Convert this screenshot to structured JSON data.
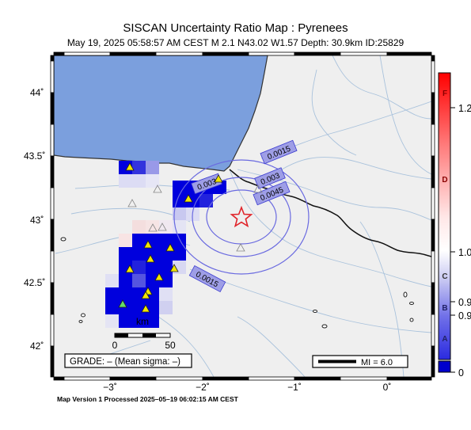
{
  "header": {
    "title": "SISCAN Uncertainty Ratio Map : Pyrenees",
    "subtitle": "May 19, 2025 05:58:57 AM CEST   M 2.1    N43.02 W1.57    Depth: 30.9km    ID:25829"
  },
  "map": {
    "lat_labels": [
      "44˚",
      "43.5˚",
      "43˚",
      "42.5˚",
      "42˚"
    ],
    "lon_labels": [
      "−3˚",
      "−2˚",
      "−1˚",
      "0˚"
    ],
    "contour_labels": [
      "0.0015",
      "0.003",
      "0.0045",
      "0.003",
      "0.0015"
    ],
    "scalebar": {
      "unit": "km",
      "ticks": [
        "0",
        "50"
      ]
    },
    "grade_box": "GRADE: – (Mean sigma: –)",
    "mi_box": "MI = 6.0"
  },
  "colorbar": {
    "letters": [
      "F",
      "D",
      "C",
      "B",
      "A"
    ],
    "values": [
      "1.2",
      "1.0",
      "0.9",
      "0.9",
      "0"
    ],
    "colors": {
      "top": "#ff0000",
      "middle": "#ffffff",
      "bottom": "#0000cc"
    }
  },
  "footer": {
    "text": "Map Version 1 Processed 2025–05–19 06:02:15 AM CEST"
  },
  "colors": {
    "sea": "#7b9fdd",
    "land": "#efefef",
    "river": "#9bb8d6",
    "contour": "#6a6ae0",
    "epicenter": "#e0242a",
    "station": "#f2e600"
  }
}
